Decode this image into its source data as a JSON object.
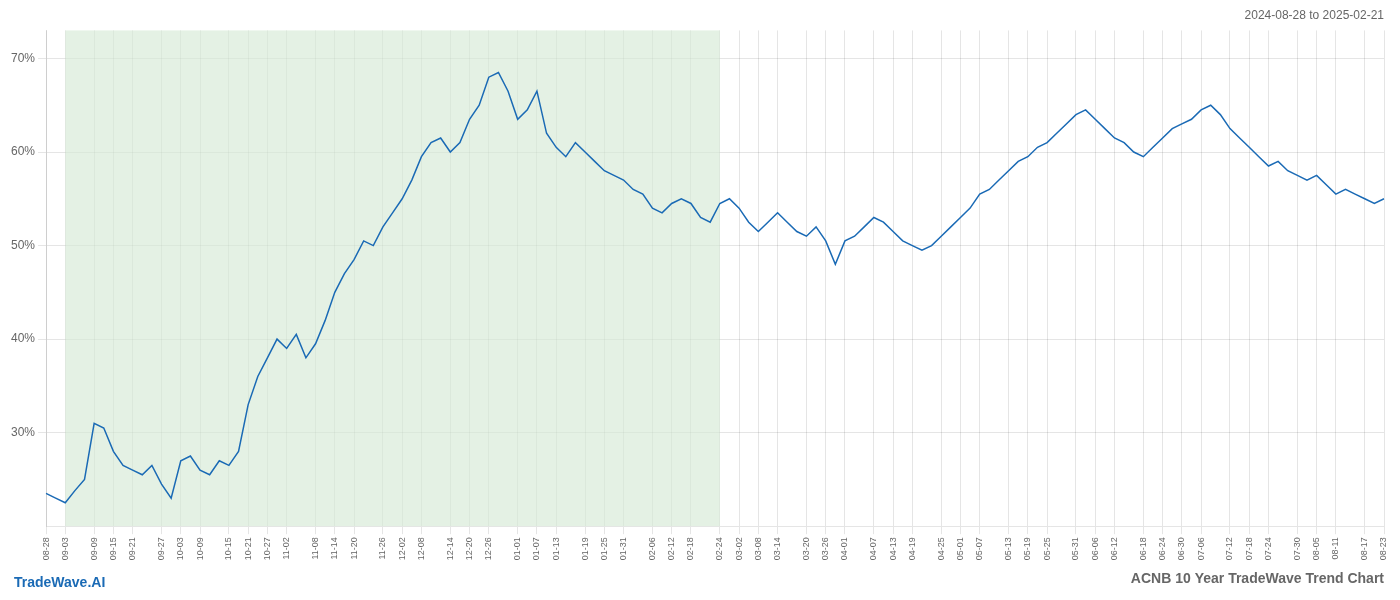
{
  "chart_data": {
    "type": "line",
    "title": "ACNB 10 Year TradeWave Trend Chart",
    "subtitle": "2024-08-28 to 2025-02-21",
    "annotations": [
      "TradeWave.AI"
    ],
    "color": "#1a6ab5",
    "grid": true,
    "ylim": [
      20,
      73
    ],
    "yticks": [
      {
        "value": 30,
        "label": "30%"
      },
      {
        "value": 40,
        "label": "40%"
      },
      {
        "value": 50,
        "label": "50%"
      },
      {
        "value": 60,
        "label": "60%"
      },
      {
        "value": 70,
        "label": "70%"
      }
    ],
    "shaded_range": {
      "from": "09-03",
      "to": "02-24",
      "color": "#d6ead6"
    },
    "categories": [
      "08-28",
      null,
      "09-03",
      null,
      null,
      "09-09",
      null,
      "09-15",
      null,
      "09-21",
      null,
      null,
      "09-27",
      null,
      "10-03",
      null,
      "10-09",
      null,
      null,
      "10-15",
      null,
      "10-21",
      null,
      "10-27",
      null,
      "11-02",
      null,
      null,
      "11-08",
      null,
      "11-14",
      null,
      "11-20",
      null,
      null,
      "11-26",
      null,
      "12-02",
      null,
      "12-08",
      null,
      null,
      "12-14",
      null,
      "12-20",
      null,
      "12-26",
      null,
      null,
      "01-01",
      null,
      "01-07",
      null,
      "01-13",
      null,
      null,
      "01-19",
      null,
      "01-25",
      null,
      "01-31",
      null,
      null,
      "02-06",
      null,
      "02-12",
      null,
      "02-18",
      null,
      null,
      "02-24",
      null,
      "03-02",
      null,
      "03-08",
      null,
      "03-14",
      null,
      null,
      "03-20",
      null,
      "03-26",
      null,
      "04-01",
      null,
      null,
      "04-07",
      null,
      "04-13",
      null,
      "04-19",
      null,
      null,
      "04-25",
      null,
      "05-01",
      null,
      "05-07",
      null,
      null,
      "05-13",
      null,
      "05-19",
      null,
      "05-25",
      null,
      null,
      "05-31",
      null,
      "06-06",
      null,
      "06-12",
      null,
      null,
      "06-18",
      null,
      "06-24",
      null,
      "06-30",
      null,
      "07-06",
      null,
      null,
      "07-12",
      null,
      "07-18",
      null,
      "07-24",
      null,
      null,
      "07-30",
      null,
      "08-05",
      null,
      "08-11",
      null,
      null,
      "08-17",
      null,
      "08-23"
    ],
    "values": [
      23.5,
      23.0,
      22.5,
      23.8,
      25.0,
      31.0,
      30.5,
      28.0,
      26.5,
      26.0,
      25.5,
      26.5,
      24.5,
      23.0,
      27.0,
      27.5,
      26.0,
      25.5,
      27.0,
      26.5,
      28.0,
      33.0,
      36.0,
      38.0,
      40.0,
      39.0,
      40.5,
      38.0,
      39.5,
      42.0,
      45.0,
      47.0,
      48.5,
      50.5,
      50.0,
      52.0,
      53.5,
      55.0,
      57.0,
      59.5,
      61.0,
      61.5,
      60.0,
      61.0,
      63.5,
      65.0,
      68.0,
      68.5,
      66.5,
      63.5,
      64.5,
      66.5,
      62.0,
      60.5,
      59.5,
      61.0,
      60.0,
      59.0,
      58.0,
      57.5,
      57.0,
      56.0,
      55.5,
      54.0,
      53.5,
      54.5,
      55.0,
      54.5,
      53.0,
      52.5,
      54.5,
      55.0,
      54.0,
      52.5,
      51.5,
      52.5,
      53.5,
      52.5,
      51.5,
      51.0,
      52.0,
      50.5,
      48.0,
      50.5,
      51.0,
      52.0,
      53.0,
      52.5,
      51.5,
      50.5,
      50.0,
      49.5,
      50.0,
      51.0,
      52.0,
      53.0,
      54.0,
      55.5,
      56.0,
      57.0,
      58.0,
      59.0,
      59.5,
      60.5,
      61.0,
      62.0,
      63.0,
      64.0,
      64.5,
      63.5,
      62.5,
      61.5,
      61.0,
      60.0,
      59.5,
      60.5,
      61.5,
      62.5,
      63.0,
      63.5,
      64.5,
      65.0,
      64.0,
      62.5,
      61.5,
      60.5,
      59.5,
      58.5,
      59.0,
      58.0,
      57.5,
      57.0,
      57.5,
      56.5,
      55.5,
      56.0,
      55.5,
      55.0,
      54.5,
      55.0
    ]
  }
}
